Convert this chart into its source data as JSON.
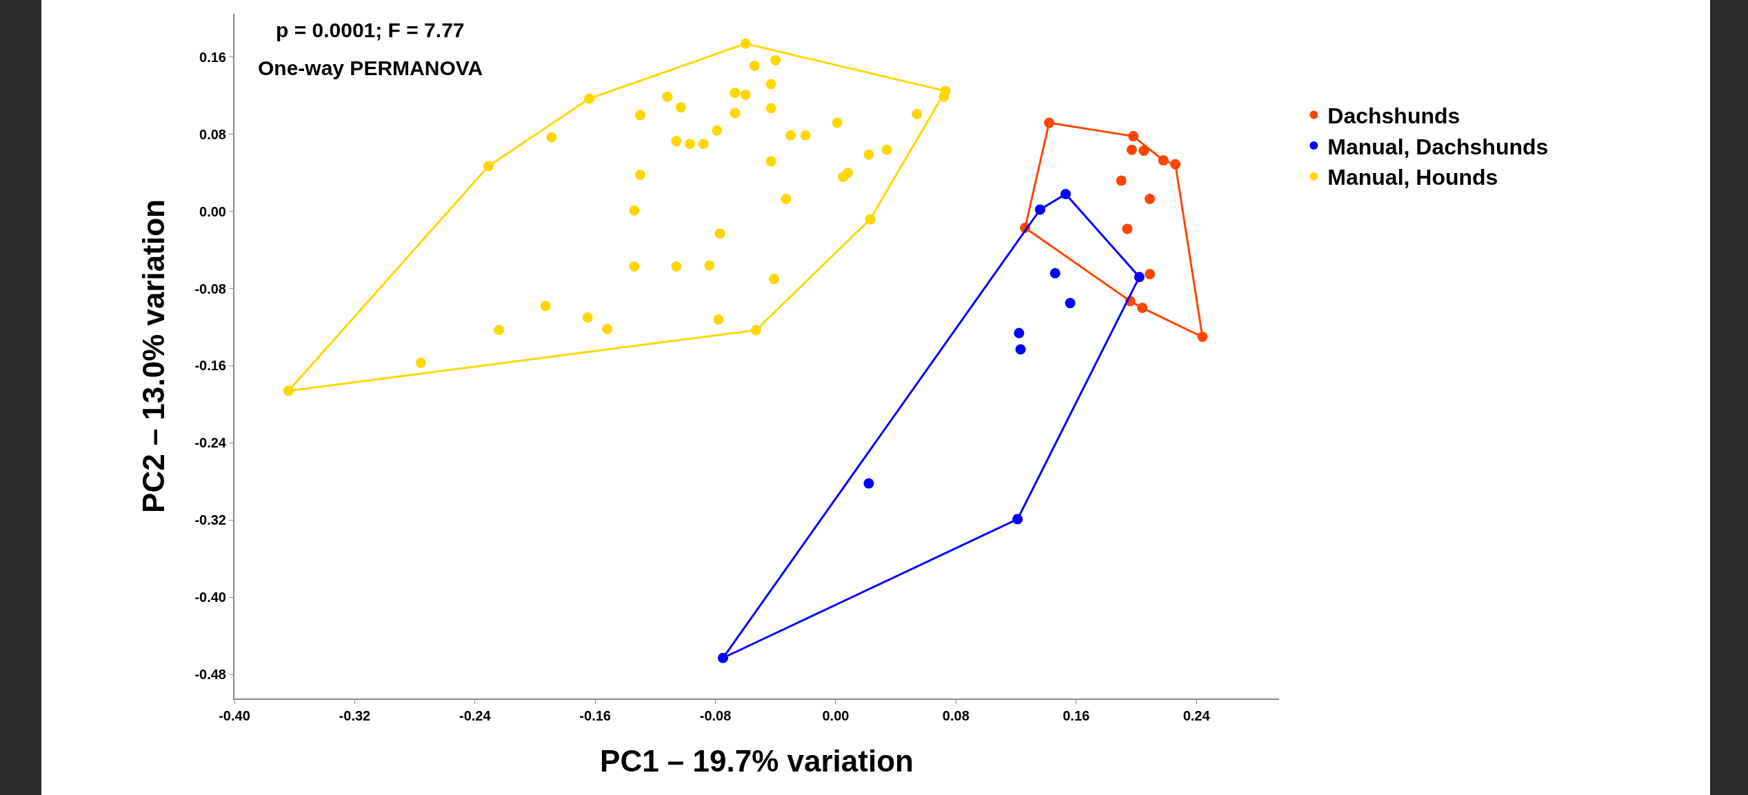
{
  "chart_data": {
    "type": "scatter",
    "xlabel": "PC1 – 19.7% variation",
    "ylabel": "PC2 – 13.0% variation",
    "annotations": [
      "p = 0.0001; F = 7.77",
      "One-way PERMANOVA"
    ],
    "xlim": [
      -0.4,
      0.295
    ],
    "ylim": [
      -0.505,
      0.205
    ],
    "xticks": [
      {
        "value": -0.4,
        "label": "-0.40"
      },
      {
        "value": -0.32,
        "label": "-0.32"
      },
      {
        "value": -0.24,
        "label": "-0.24"
      },
      {
        "value": -0.16,
        "label": "-0.16"
      },
      {
        "value": -0.08,
        "label": "-0.08"
      },
      {
        "value": 0,
        "label": "0.00"
      },
      {
        "value": 0.08,
        "label": "0.08"
      },
      {
        "value": 0.16,
        "label": "0.16"
      },
      {
        "value": 0.24,
        "label": "0.24"
      }
    ],
    "yticks": [
      {
        "value": -0.48,
        "label": "-0.48"
      },
      {
        "value": -0.4,
        "label": "-0.40"
      },
      {
        "value": -0.32,
        "label": "-0.32"
      },
      {
        "value": -0.24,
        "label": "-0.24"
      },
      {
        "value": -0.16,
        "label": "-0.16"
      },
      {
        "value": -0.08,
        "label": "-0.08"
      },
      {
        "value": 0,
        "label": "0.00"
      },
      {
        "value": 0.08,
        "label": "0.08"
      },
      {
        "value": 0.16,
        "label": "0.16"
      }
    ],
    "grid": false,
    "legend": "right",
    "marker": "circle",
    "series": [
      {
        "name": "Dachshunds",
        "color": "#ff4500",
        "x": [
          0.142,
          0.198,
          0.197,
          0.205,
          0.218,
          0.226,
          0.19,
          0.209,
          0.194,
          0.126,
          0.209,
          0.196,
          0.204,
          0.244
        ],
        "values": [
          0.092,
          0.078,
          0.064,
          0.063,
          0.053,
          0.049,
          0.032,
          0.013,
          -0.018,
          -0.017,
          -0.065,
          -0.093,
          -0.1,
          -0.13
        ]
      },
      {
        "name": "Manual, Dachshunds",
        "color": "#0000ff",
        "x": [
          0.153,
          0.136,
          0.202,
          0.146,
          0.156,
          0.122,
          0.123,
          0.022,
          0.121,
          -0.075
        ],
        "values": [
          0.018,
          0.002,
          -0.068,
          -0.064,
          -0.095,
          -0.126,
          -0.143,
          -0.282,
          -0.319,
          -0.463
        ]
      },
      {
        "name": "Manual, Hounds",
        "color": "#ffd700",
        "x": [
          -0.06,
          -0.054,
          -0.04,
          -0.067,
          -0.06,
          -0.043,
          -0.067,
          -0.043,
          -0.112,
          -0.103,
          -0.13,
          -0.164,
          -0.189,
          -0.231,
          -0.364,
          -0.276,
          -0.224,
          -0.193,
          -0.165,
          -0.152,
          -0.053,
          -0.078,
          -0.084,
          -0.106,
          -0.134,
          -0.134,
          -0.13,
          -0.106,
          -0.097,
          -0.088,
          -0.079,
          -0.043,
          -0.033,
          -0.077,
          -0.041,
          -0.03,
          -0.02,
          0.001,
          0.005,
          0.008,
          0.022,
          0.034,
          0.023,
          0.054,
          0.073,
          0.072
        ],
        "values": [
          0.174,
          0.151,
          0.157,
          0.123,
          0.121,
          0.132,
          0.102,
          0.107,
          0.119,
          0.108,
          0.1,
          0.117,
          0.077,
          0.047,
          -0.186,
          -0.157,
          -0.123,
          -0.098,
          -0.11,
          -0.122,
          -0.123,
          -0.112,
          -0.056,
          -0.057,
          -0.057,
          0.001,
          0.038,
          0.073,
          0.07,
          0.07,
          0.084,
          0.052,
          0.013,
          -0.023,
          -0.07,
          0.079,
          0.079,
          0.092,
          0.036,
          0.04,
          0.059,
          0.064,
          -0.008,
          0.101,
          0.125,
          0.119
        ]
      },
      {
        "type": "line",
        "marker": "none",
        "color": "#ff4500",
        "x": [
          0.126,
          0.142,
          0.198,
          0.218,
          0.226,
          0.244
        ],
        "values": [
          -0.017,
          0.092,
          0.078,
          0.053,
          0.049,
          -0.13
        ]
      },
      {
        "type": "line",
        "marker": "none",
        "color": "#ff4500",
        "x": [
          0.126,
          0.196,
          0.204,
          0.244
        ],
        "values": [
          -0.017,
          -0.093,
          -0.1,
          -0.13
        ]
      },
      {
        "type": "line",
        "marker": "none",
        "color": "#0000ff",
        "x": [
          -0.075,
          0.136,
          0.153,
          0.202
        ],
        "values": [
          -0.463,
          0.002,
          0.018,
          -0.068
        ]
      },
      {
        "type": "line",
        "marker": "none",
        "color": "#0000ff",
        "x": [
          -0.075,
          0.121,
          0.202
        ],
        "values": [
          -0.463,
          -0.319,
          -0.068
        ]
      },
      {
        "type": "line",
        "marker": "none",
        "color": "#ffd700",
        "x": [
          -0.364,
          -0.231,
          -0.164,
          -0.06,
          0.073
        ],
        "values": [
          -0.186,
          0.047,
          0.117,
          0.174,
          0.125
        ]
      },
      {
        "type": "line",
        "marker": "none",
        "color": "#ffd700",
        "x": [
          -0.364,
          -0.053,
          0.023,
          0.073
        ],
        "values": [
          -0.186,
          -0.123,
          -0.008,
          0.125
        ]
      }
    ]
  }
}
